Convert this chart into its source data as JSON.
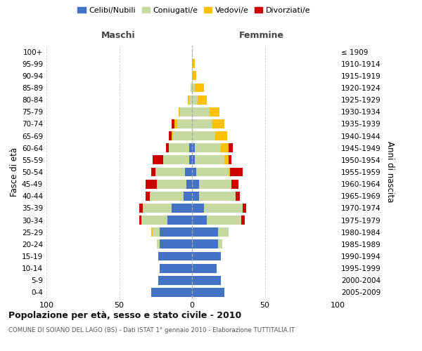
{
  "age_groups": [
    "0-4",
    "5-9",
    "10-14",
    "15-19",
    "20-24",
    "25-29",
    "30-34",
    "35-39",
    "40-44",
    "45-49",
    "50-54",
    "55-59",
    "60-64",
    "65-69",
    "70-74",
    "75-79",
    "80-84",
    "85-89",
    "90-94",
    "95-99",
    "100+"
  ],
  "birth_years": [
    "2005-2009",
    "2000-2004",
    "1995-1999",
    "1990-1994",
    "1985-1989",
    "1980-1984",
    "1975-1979",
    "1970-1974",
    "1965-1969",
    "1960-1964",
    "1955-1959",
    "1950-1954",
    "1945-1949",
    "1940-1944",
    "1935-1939",
    "1930-1934",
    "1925-1929",
    "1920-1924",
    "1915-1919",
    "1910-1914",
    "≤ 1909"
  ],
  "males": {
    "celibi": [
      28,
      23,
      22,
      23,
      22,
      22,
      17,
      14,
      6,
      4,
      5,
      2,
      2,
      0,
      0,
      0,
      0,
      0,
      0,
      0,
      0
    ],
    "coniugati": [
      0,
      0,
      0,
      0,
      2,
      5,
      18,
      20,
      23,
      20,
      20,
      18,
      14,
      13,
      10,
      8,
      2,
      1,
      0,
      0,
      0
    ],
    "vedovi": [
      0,
      0,
      0,
      0,
      0,
      1,
      0,
      0,
      0,
      0,
      0,
      0,
      0,
      1,
      2,
      1,
      1,
      0,
      0,
      0,
      0
    ],
    "divorziati": [
      0,
      0,
      0,
      0,
      0,
      0,
      1,
      2,
      3,
      8,
      3,
      7,
      2,
      2,
      2,
      0,
      0,
      0,
      0,
      0,
      0
    ]
  },
  "females": {
    "nubili": [
      22,
      20,
      17,
      20,
      18,
      18,
      10,
      8,
      5,
      5,
      3,
      2,
      2,
      0,
      0,
      0,
      0,
      0,
      0,
      0,
      0
    ],
    "coniugate": [
      0,
      0,
      0,
      0,
      3,
      7,
      24,
      27,
      25,
      22,
      22,
      20,
      18,
      16,
      14,
      12,
      4,
      2,
      0,
      0,
      0
    ],
    "vedove": [
      0,
      0,
      0,
      0,
      0,
      0,
      0,
      0,
      0,
      0,
      1,
      3,
      5,
      8,
      8,
      7,
      6,
      6,
      3,
      2,
      0
    ],
    "divorziate": [
      0,
      0,
      0,
      0,
      0,
      0,
      2,
      2,
      3,
      5,
      9,
      2,
      3,
      0,
      0,
      0,
      0,
      0,
      0,
      0,
      0
    ]
  },
  "colors": {
    "celibi": "#4472c4",
    "coniugati": "#c5d9a0",
    "vedovi": "#ffc000",
    "divorziati": "#cc0000"
  },
  "xlim": [
    -100,
    100
  ],
  "xticks": [
    -100,
    -50,
    0,
    50,
    100
  ],
  "xticklabels": [
    "100",
    "50",
    "0",
    "50",
    "100"
  ],
  "title": "Popolazione per età, sesso e stato civile - 2010",
  "subtitle": "COMUNE DI SOIANO DEL LAGO (BS) - Dati ISTAT 1° gennaio 2010 - Elaborazione TUTTITALIA.IT",
  "ylabel_left": "Fasce di età",
  "ylabel_right": "Anni di nascita",
  "label_maschi": "Maschi",
  "label_femmine": "Femmine",
  "legend_labels": [
    "Celibi/Nubili",
    "Coniugati/e",
    "Vedovi/e",
    "Divorziati/e"
  ],
  "background_color": "#ffffff",
  "grid_color": "#cccccc"
}
